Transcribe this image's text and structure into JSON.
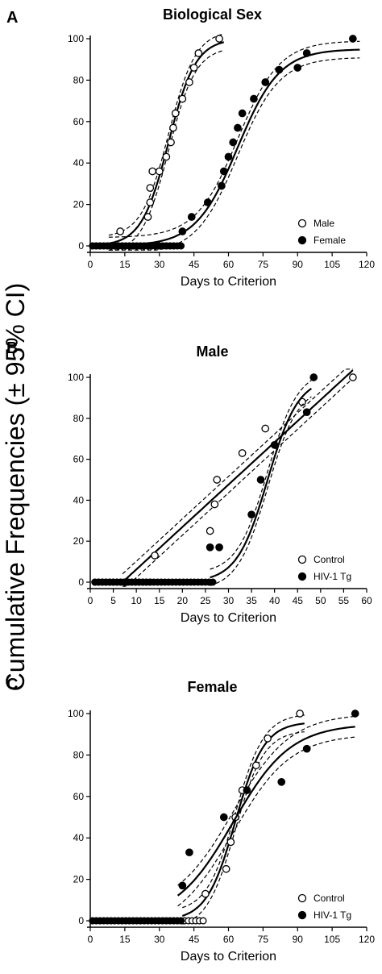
{
  "y_axis_label": "Cumulative Frequencies (± 95% CI)",
  "chart_data": [
    {
      "type": "scatter",
      "panel": "A",
      "title": "Biological Sex",
      "xlabel": "Days to Criterion",
      "ylabel": "",
      "xlim": [
        0,
        120
      ],
      "ylim": [
        0,
        100
      ],
      "xticks": [
        0,
        15,
        30,
        45,
        60,
        75,
        90,
        105,
        120
      ],
      "yticks": [
        0,
        20,
        40,
        60,
        80,
        100
      ],
      "legend_position": "bottom-right",
      "series": [
        {
          "name": "Male",
          "marker": "open",
          "points": [
            [
              13,
              7
            ],
            [
              25,
              14
            ],
            [
              26,
              21
            ],
            [
              26,
              28
            ],
            [
              27,
              36
            ],
            [
              30,
              36
            ],
            [
              33,
              43
            ],
            [
              35,
              50
            ],
            [
              36,
              57
            ],
            [
              37,
              64
            ],
            [
              40,
              71
            ],
            [
              43,
              79
            ],
            [
              45,
              86
            ],
            [
              47,
              93
            ],
            [
              56,
              100
            ]
          ],
          "zero_range": [
            1,
            37
          ],
          "fit": {
            "lo": 0,
            "hi": 100,
            "x50": 34,
            "k": 0.17,
            "ci": 4,
            "from": 8,
            "to": 58
          }
        },
        {
          "name": "Female",
          "marker": "filled",
          "points": [
            [
              40,
              7
            ],
            [
              44,
              14
            ],
            [
              51,
              21
            ],
            [
              57,
              29
            ],
            [
              58,
              36
            ],
            [
              60,
              43
            ],
            [
              62,
              50
            ],
            [
              64,
              57
            ],
            [
              66,
              64
            ],
            [
              71,
              71
            ],
            [
              76,
              79
            ],
            [
              82,
              85
            ],
            [
              90,
              86
            ],
            [
              94,
              93
            ],
            [
              114,
              100
            ]
          ],
          "zero_range": [
            1,
            40
          ],
          "fit": {
            "lo": 0,
            "hi": 95,
            "x50": 64,
            "k": 0.11,
            "ci": 4,
            "from": 8,
            "to": 117
          }
        }
      ]
    },
    {
      "type": "scatter",
      "panel": "B",
      "title": "Male",
      "xlabel": "Days to Criterion",
      "ylabel": "",
      "xlim": [
        0,
        60
      ],
      "ylim": [
        0,
        100
      ],
      "xticks": [
        0,
        5,
        10,
        15,
        20,
        25,
        30,
        35,
        40,
        45,
        50,
        55,
        60
      ],
      "yticks": [
        0,
        20,
        40,
        60,
        80,
        100
      ],
      "legend_position": "bottom-right",
      "series": [
        {
          "name": "Control",
          "marker": "open",
          "points": [
            [
              14,
              13
            ],
            [
              26,
              25
            ],
            [
              27,
              38
            ],
            [
              27.5,
              50
            ],
            [
              33,
              63
            ],
            [
              38,
              75
            ],
            [
              46,
              88
            ],
            [
              57,
              100
            ]
          ],
          "zero_range": [
            1,
            13
          ],
          "fit": {
            "type": "linear",
            "x0": 7,
            "slope": 2.07,
            "ci": 4,
            "from": 7,
            "to": 57
          }
        },
        {
          "name": "HIV-1 Tg",
          "marker": "filled",
          "points": [
            [
              26,
              17
            ],
            [
              28,
              17
            ],
            [
              35,
              33
            ],
            [
              37,
              50
            ],
            [
              40,
              67
            ],
            [
              47,
              83
            ],
            [
              48.5,
              100
            ]
          ],
          "zero_range": [
            1,
            27
          ],
          "fit": {
            "lo": 0,
            "hi": 100,
            "x50": 38.5,
            "k": 0.3,
            "ci": 4,
            "from": 26,
            "to": 48
          }
        }
      ]
    },
    {
      "type": "scatter",
      "panel": "C",
      "title": "Female",
      "xlabel": "Days to Criterion",
      "ylabel": "",
      "xlim": [
        0,
        120
      ],
      "ylim": [
        0,
        100
      ],
      "xticks": [
        0,
        15,
        30,
        45,
        60,
        75,
        90,
        105,
        120
      ],
      "yticks": [
        0,
        20,
        40,
        60,
        80,
        100
      ],
      "legend_position": "bottom-right",
      "series": [
        {
          "name": "Control",
          "marker": "open",
          "points": [
            [
              50,
              13
            ],
            [
              59,
              25
            ],
            [
              61,
              38
            ],
            [
              63,
              50
            ],
            [
              66,
              63
            ],
            [
              72,
              75
            ],
            [
              77,
              88
            ],
            [
              91,
              100
            ]
          ],
          "zero_range": [
            1,
            50
          ],
          "fit": {
            "lo": 0,
            "hi": 96,
            "x50": 63,
            "k": 0.16,
            "ci": 4,
            "from": 40,
            "to": 93
          }
        },
        {
          "name": "HIV-1 Tg",
          "marker": "filled",
          "points": [
            [
              40,
              17
            ],
            [
              43,
              33
            ],
            [
              58,
              50
            ],
            [
              68,
              63
            ],
            [
              83,
              67
            ],
            [
              94,
              83
            ],
            [
              115,
              100
            ]
          ],
          "zero_range": [
            1,
            40
          ],
          "fit": {
            "lo": 0,
            "hi": 95,
            "x50": 62,
            "k": 0.08,
            "ci": 5,
            "from": 38,
            "to": 115
          }
        }
      ]
    }
  ]
}
